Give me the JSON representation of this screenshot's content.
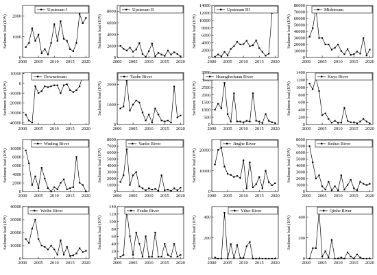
{
  "chart_data": [
    {
      "type": "line",
      "name": "Upstream I",
      "legend": "Upstream I",
      "ylabel": "Sediment load (10⁴t)",
      "x": [
        2001,
        2002,
        2003,
        2004,
        2005,
        2006,
        2007,
        2008,
        2009,
        2010,
        2011,
        2012,
        2013,
        2014,
        2015,
        2016,
        2017,
        2018,
        2019,
        2020
      ],
      "values": [
        500,
        700,
        1400,
        800,
        1100,
        200,
        400,
        150,
        700,
        1600,
        800,
        1750,
        900,
        800,
        400,
        300,
        700,
        2100,
        1650,
        1900
      ],
      "ylim": [
        0,
        2500
      ],
      "yticks": [
        0,
        1000,
        2000
      ],
      "xticks": [
        2000,
        2005,
        2010,
        2015,
        2020
      ]
    },
    {
      "type": "line",
      "name": "Upstream II",
      "legend": "Upstream II",
      "ylabel": "Sediment load (10⁴t)",
      "x": [
        2001,
        2002,
        2003,
        2004,
        2005,
        2006,
        2007,
        2008,
        2009,
        2010,
        2011,
        2012,
        2013,
        2014,
        2015,
        2016,
        2017,
        2018,
        2019,
        2020
      ],
      "values": [
        2000,
        1500,
        1200,
        1700,
        1000,
        1400,
        2500,
        600,
        100,
        1100,
        2400,
        200,
        800,
        500,
        300,
        1200,
        500,
        900,
        600,
        200
      ],
      "ylim": [
        0,
        9000
      ],
      "yticks": [
        0,
        2000,
        4000,
        6000,
        8000
      ],
      "xticks": [
        2000,
        2005,
        2010,
        2015,
        2020
      ]
    },
    {
      "type": "line",
      "name": "Upstream III",
      "legend": "Upstream III",
      "ylabel": "Sediment load (10⁴t)",
      "x": [
        2001,
        2002,
        2003,
        2004,
        2005,
        2006,
        2007,
        2008,
        2009,
        2010,
        2011,
        2012,
        2013,
        2014,
        2015,
        2016,
        2017,
        2018,
        2019,
        2020
      ],
      "values": [
        200,
        800,
        300,
        1500,
        600,
        2300,
        3000,
        4200,
        3500,
        3600,
        4500,
        3000,
        3300,
        4600,
        2500,
        1500,
        500,
        1000,
        12000,
        12500
      ],
      "ylim": [
        0,
        14000
      ],
      "yticks": [
        0,
        2000,
        4000,
        6000,
        8000,
        10000,
        12000,
        14000
      ],
      "xticks": [
        2000,
        2005,
        2010,
        2015,
        2020
      ]
    },
    {
      "type": "line",
      "name": "Midstream",
      "legend": "Midstream",
      "ylabel": "Sediment load (10⁴t)",
      "x": [
        2001,
        2002,
        2003,
        2004,
        2005,
        2006,
        2007,
        2008,
        2009,
        2010,
        2011,
        2012,
        2013,
        2014,
        2015,
        2016,
        2017,
        2018,
        2019,
        2020
      ],
      "values": [
        32000,
        45000,
        75000,
        30000,
        30000,
        20000,
        20000,
        12000,
        15000,
        20000,
        10000,
        5000,
        13000,
        4000,
        5000,
        9000,
        6000,
        30000,
        3000,
        12000
      ],
      "ylim": [
        0,
        80000
      ],
      "yticks": [
        0,
        10000,
        20000,
        30000,
        40000,
        50000,
        60000,
        70000,
        80000
      ],
      "xticks": [
        2000,
        2005,
        2010,
        2015,
        2020
      ]
    },
    {
      "type": "line",
      "name": "Downstream",
      "legend": "Downstream",
      "ylabel": "Sediment load (10⁴t)",
      "x": [
        2001,
        2002,
        2003,
        2004,
        2005,
        2006,
        2007,
        2008,
        2009,
        2010,
        2011,
        2012,
        2013,
        2014,
        2015,
        2016,
        2017,
        2018,
        2019,
        2020
      ],
      "values": [
        -32000,
        -38000,
        -40000,
        -3000,
        -10000,
        -8000,
        -3000,
        -4000,
        -3000,
        -2000,
        -2000,
        -10000,
        -2000,
        -1000,
        -7000,
        -9000,
        -7000,
        -3000,
        8000,
        6000
      ],
      "ylim": [
        -42000,
        11000
      ],
      "yticks": [
        -40000,
        -30000,
        -20000,
        -10000,
        0,
        10000
      ],
      "xticks": [
        2000,
        2005,
        2010,
        2015,
        2020
      ]
    },
    {
      "type": "line",
      "name": "Taohe River",
      "legend": "Taohe River",
      "ylabel": "Sediment load (10⁴t)",
      "x": [
        2001,
        2002,
        2003,
        2004,
        2005,
        2006,
        2007,
        2008,
        2009,
        2010,
        2011,
        2012,
        2013,
        2014,
        2015,
        2016,
        2017,
        2018,
        2019,
        2020
      ],
      "values": [
        800,
        900,
        2200,
        700,
        1000,
        1200,
        1100,
        600,
        200,
        500,
        100,
        800,
        500,
        200,
        150,
        200,
        100,
        1900,
        350,
        450
      ],
      "ylim": [
        0,
        2600
      ],
      "yticks": [
        0,
        1000,
        2000
      ],
      "xticks": [
        2000,
        2005,
        2010,
        2015,
        2020
      ]
    },
    {
      "type": "line",
      "name": "Huangfuchuan River",
      "legend": "Huangfuchuan River",
      "ylabel": "Sediment load (10⁴t)",
      "x": [
        2001,
        2002,
        2003,
        2004,
        2005,
        2006,
        2007,
        2008,
        2009,
        2010,
        2011,
        2012,
        2013,
        2014,
        2015,
        2016,
        2017,
        2018,
        2019,
        2020
      ],
      "values": [
        1000,
        1400,
        1100,
        2800,
        700,
        200,
        2100,
        200,
        200,
        150,
        250,
        200,
        2100,
        250,
        200,
        100,
        700,
        250,
        150,
        100
      ],
      "ylim": [
        0,
        3500
      ],
      "yticks": [
        0,
        500,
        1000,
        1500,
        2000,
        2500,
        3000,
        3500
      ],
      "xticks": [
        2000,
        2005,
        2010,
        2015,
        2020
      ]
    },
    {
      "type": "line",
      "name": "Kuye River",
      "legend": "Kuye River",
      "ylabel": "Sediment load (10⁴t)",
      "x": [
        2001,
        2002,
        2003,
        2004,
        2005,
        2006,
        2007,
        2008,
        2009,
        2010,
        2011,
        2012,
        2013,
        2014,
        2015,
        2016,
        2017,
        2018,
        2019,
        2020
      ],
      "values": [
        1100,
        950,
        1250,
        900,
        250,
        300,
        150,
        50,
        100,
        50,
        50,
        450,
        100,
        60,
        60,
        30,
        80,
        150,
        80,
        30
      ],
      "ylim": [
        0,
        1400
      ],
      "yticks": [
        0,
        200,
        400,
        600,
        800,
        1000,
        1200,
        1400
      ],
      "xticks": [
        2000,
        2005,
        2010,
        2015,
        2020
      ]
    },
    {
      "type": "line",
      "name": "Wuding River",
      "legend": "Wuding River",
      "ylabel": "Sediment load (10⁴t)",
      "x": [
        2001,
        2002,
        2003,
        2004,
        2005,
        2006,
        2007,
        2008,
        2009,
        2010,
        2011,
        2012,
        2013,
        2014,
        2015,
        2016,
        2017,
        2018,
        2019,
        2020
      ],
      "values": [
        9500,
        6500,
        1500,
        3500,
        800,
        5500,
        3000,
        800,
        0,
        1000,
        500,
        2000,
        2800,
        500,
        800,
        1000,
        8000,
        2000,
        1500,
        0
      ],
      "ylim": [
        0,
        12000
      ],
      "yticks": [
        0,
        2000,
        4000,
        6000,
        8000,
        10000
      ],
      "xticks": [
        2000,
        2005,
        2010,
        2015,
        2020
      ]
    },
    {
      "type": "line",
      "name": "Yanhe River",
      "legend": "Yanhe River",
      "ylabel": "Sediment load (10⁴t)",
      "x": [
        2001,
        2002,
        2003,
        2004,
        2005,
        2006,
        2007,
        2008,
        2009,
        2010,
        2011,
        2012,
        2013,
        2014,
        2015,
        2016,
        2017,
        2018,
        2019,
        2020
      ],
      "values": [
        1500,
        2500,
        6500,
        1000,
        2500,
        3000,
        800,
        500,
        200,
        500,
        300,
        400,
        100,
        2500,
        200,
        300,
        100,
        500,
        200,
        600
      ],
      "ylim": [
        0,
        8000
      ],
      "yticks": [
        0,
        1000,
        2000,
        3000,
        4000,
        5000,
        6000,
        7000,
        8000
      ],
      "xticks": [
        2000,
        2005,
        2010,
        2015,
        2020
      ]
    },
    {
      "type": "line",
      "name": "Jinghe River",
      "legend": "Jinghe River",
      "ylabel": "Sediment load (10⁴t)",
      "x": [
        2001,
        2002,
        2003,
        2004,
        2005,
        2006,
        2007,
        2008,
        2009,
        2010,
        2011,
        2012,
        2013,
        2014,
        2015,
        2016,
        2017,
        2018,
        2019,
        2020
      ],
      "values": [
        13000,
        20000,
        21000,
        12000,
        8500,
        8000,
        7000,
        7500,
        6500,
        15000,
        1500,
        14000,
        2000,
        3500,
        7000,
        1500,
        10000,
        4500,
        3000,
        4000
      ],
      "ylim": [
        0,
        25000
      ],
      "yticks": [
        0,
        10000,
        20000
      ],
      "xticks": [
        2000,
        2005,
        2010,
        2015,
        2020
      ]
    },
    {
      "type": "line",
      "name": "Beiluo River",
      "legend": "Beiluo River",
      "ylabel": "Sediment load (10⁴t)",
      "x": [
        2001,
        2002,
        2003,
        2004,
        2005,
        2006,
        2007,
        2008,
        2009,
        2010,
        2011,
        2012,
        2013,
        2014,
        2015,
        2016,
        2017,
        2018,
        2019,
        2020
      ],
      "values": [
        7000,
        4500,
        2000,
        2500,
        800,
        300,
        1500,
        200,
        800,
        200,
        2500,
        300,
        1000,
        1800,
        500,
        200,
        1500,
        1200,
        1000,
        1200
      ],
      "ylim": [
        0,
        8000
      ],
      "yticks": [
        0,
        1000,
        2000,
        3000,
        4000,
        5000,
        6000,
        7000,
        8000
      ],
      "xticks": [
        2000,
        2005,
        2010,
        2015,
        2020
      ]
    },
    {
      "type": "line",
      "name": "Weihe River",
      "legend": "Weihe River",
      "ylabel": "Sediment load (10⁴t)",
      "x": [
        2001,
        2002,
        2003,
        2004,
        2005,
        2006,
        2007,
        2008,
        2009,
        2010,
        2011,
        2012,
        2013,
        2014,
        2015,
        2016,
        2017,
        2018,
        2019,
        2020
      ],
      "values": [
        15000,
        12000,
        23000,
        30000,
        15000,
        10000,
        9000,
        7000,
        10000,
        7000,
        3000,
        14000,
        3000,
        9000,
        2000,
        2500,
        4000,
        8000,
        5000,
        6000
      ],
      "ylim": [
        0,
        40000
      ],
      "yticks": [
        0,
        10000,
        20000,
        30000,
        40000
      ],
      "xticks": [
        2000,
        2005,
        2010,
        2015,
        2020
      ]
    },
    {
      "type": "line",
      "name": "Fenhe River",
      "legend": "Fenhe River",
      "ylabel": "Sediment load (10⁴t)",
      "x": [
        2001,
        2002,
        2003,
        2004,
        2005,
        2006,
        2007,
        2008,
        2009,
        2010,
        2011,
        2012,
        2013,
        2014,
        2015,
        2016,
        2017,
        2018,
        2019,
        2020
      ],
      "values": [
        5,
        10,
        130,
        60,
        10,
        70,
        40,
        5,
        60,
        5,
        5,
        70,
        5,
        5,
        40,
        10,
        5,
        40,
        5,
        10
      ],
      "ylim": [
        0,
        140
      ],
      "yticks": [
        0,
        20,
        40,
        60,
        80,
        100,
        120,
        140
      ],
      "xticks": [
        2000,
        2005,
        2010,
        2015,
        2020
      ]
    },
    {
      "type": "line",
      "name": "Yiluo River",
      "legend": "Yiluo River",
      "ylabel": "Sediment load (10⁴t)",
      "x": [
        2001,
        2002,
        2003,
        2004,
        2005,
        2006,
        2007,
        2008,
        2009,
        2010,
        2011,
        2012,
        2013,
        2014,
        2015,
        2016,
        2017,
        2018,
        2019,
        2020
      ],
      "values": [
        10,
        0,
        0,
        440,
        0,
        140,
        5,
        130,
        5,
        5,
        120,
        160,
        0,
        0,
        0,
        0,
        0,
        0,
        0,
        0
      ],
      "ylim": [
        0,
        500
      ],
      "yticks": [
        0,
        200,
        400
      ],
      "xticks": [
        2000,
        2005,
        2010,
        2015,
        2020
      ]
    },
    {
      "type": "line",
      "name": "Qinhe River",
      "legend": "Qinhe River",
      "ylabel": "Sediment load (10⁴t)",
      "x": [
        2001,
        2002,
        2003,
        2004,
        2005,
        2006,
        2007,
        2008,
        2009,
        2010,
        2011,
        2012,
        2013,
        2014,
        2015,
        2016,
        2017,
        2018,
        2019,
        2020
      ],
      "values": [
        0,
        100,
        100,
        460,
        20,
        70,
        10,
        180,
        0,
        0,
        10,
        0,
        60,
        20,
        0,
        40,
        10,
        0,
        0,
        0
      ],
      "ylim": [
        0,
        500
      ],
      "yticks": [
        0,
        200,
        400
      ],
      "xticks": [
        2000,
        2005,
        2010,
        2015,
        2020
      ]
    }
  ]
}
